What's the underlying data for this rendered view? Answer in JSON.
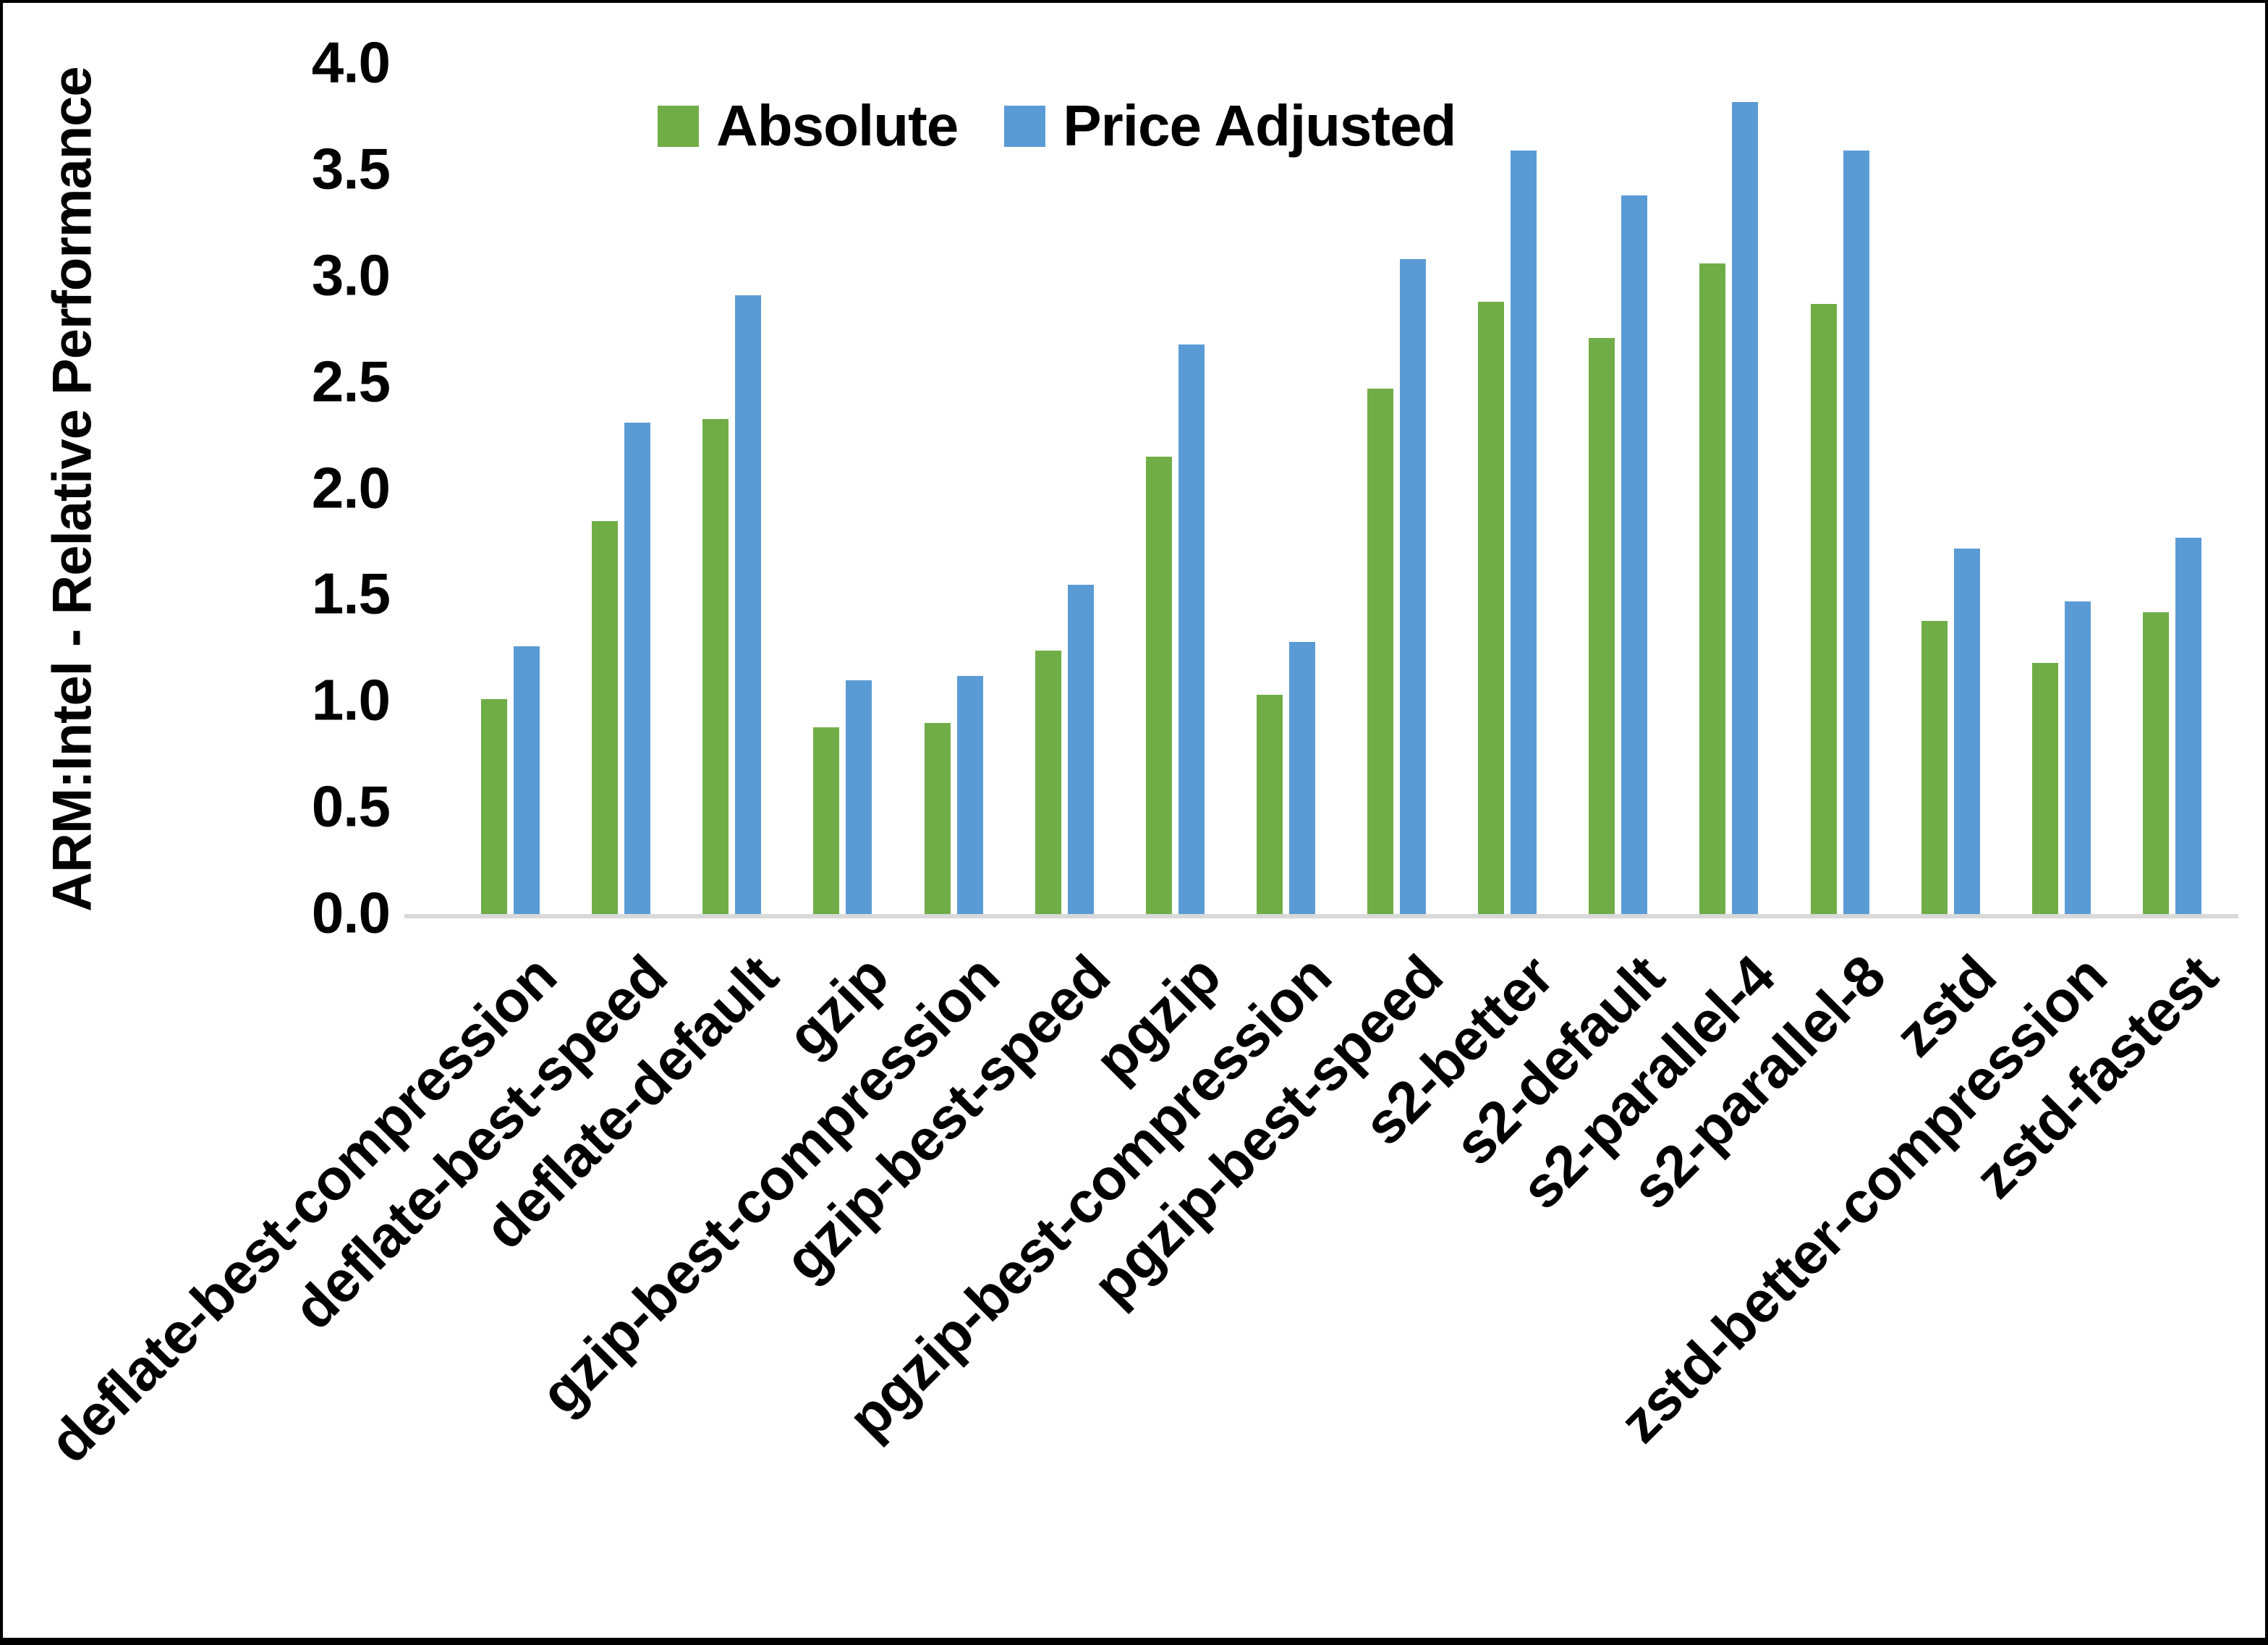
{
  "page": {
    "background_color": "#ffffff",
    "frame_border_color": "#000000"
  },
  "chart_data": {
    "type": "bar",
    "title": "",
    "xlabel": "",
    "ylabel": "ARM:Intel - Relative Performance",
    "ylim": [
      0,
      4.0
    ],
    "ytick_step": 0.5,
    "yticks": [
      "4.0",
      "3.5",
      "3.0",
      "2.5",
      "2.0",
      "1.5",
      "1.0",
      "0.5",
      "0.0"
    ],
    "grid": false,
    "legend_position": "top-center-inside",
    "baseline_color": "#D9D9D9",
    "text_color": "#000000",
    "categories": [
      "deflate-best-compression",
      "deflate-best-speed",
      "deflate-default",
      "gzip",
      "gzip-best-compression",
      "gzip-best-speed",
      "pgzip",
      "pgzip-best-compression",
      "pgzip-best-speed",
      "s2-better",
      "s2-default",
      "s2-parallel-4",
      "s2-parallel-8",
      "zstd",
      "zstd-better-compression",
      "zstd-fastest"
    ],
    "series": [
      {
        "name": "Absolute",
        "color": "#70AD47",
        "values": [
          1.01,
          1.85,
          2.33,
          0.88,
          0.9,
          1.24,
          2.15,
          1.03,
          2.47,
          2.88,
          2.71,
          3.06,
          2.87,
          1.38,
          1.18,
          1.42
        ]
      },
      {
        "name": "Price Adjusted",
        "color": "#5B9BD5",
        "values": [
          1.26,
          2.31,
          2.91,
          1.1,
          1.12,
          1.55,
          2.68,
          1.28,
          3.08,
          3.59,
          3.38,
          3.82,
          3.59,
          1.72,
          1.47,
          1.77
        ]
      }
    ]
  }
}
